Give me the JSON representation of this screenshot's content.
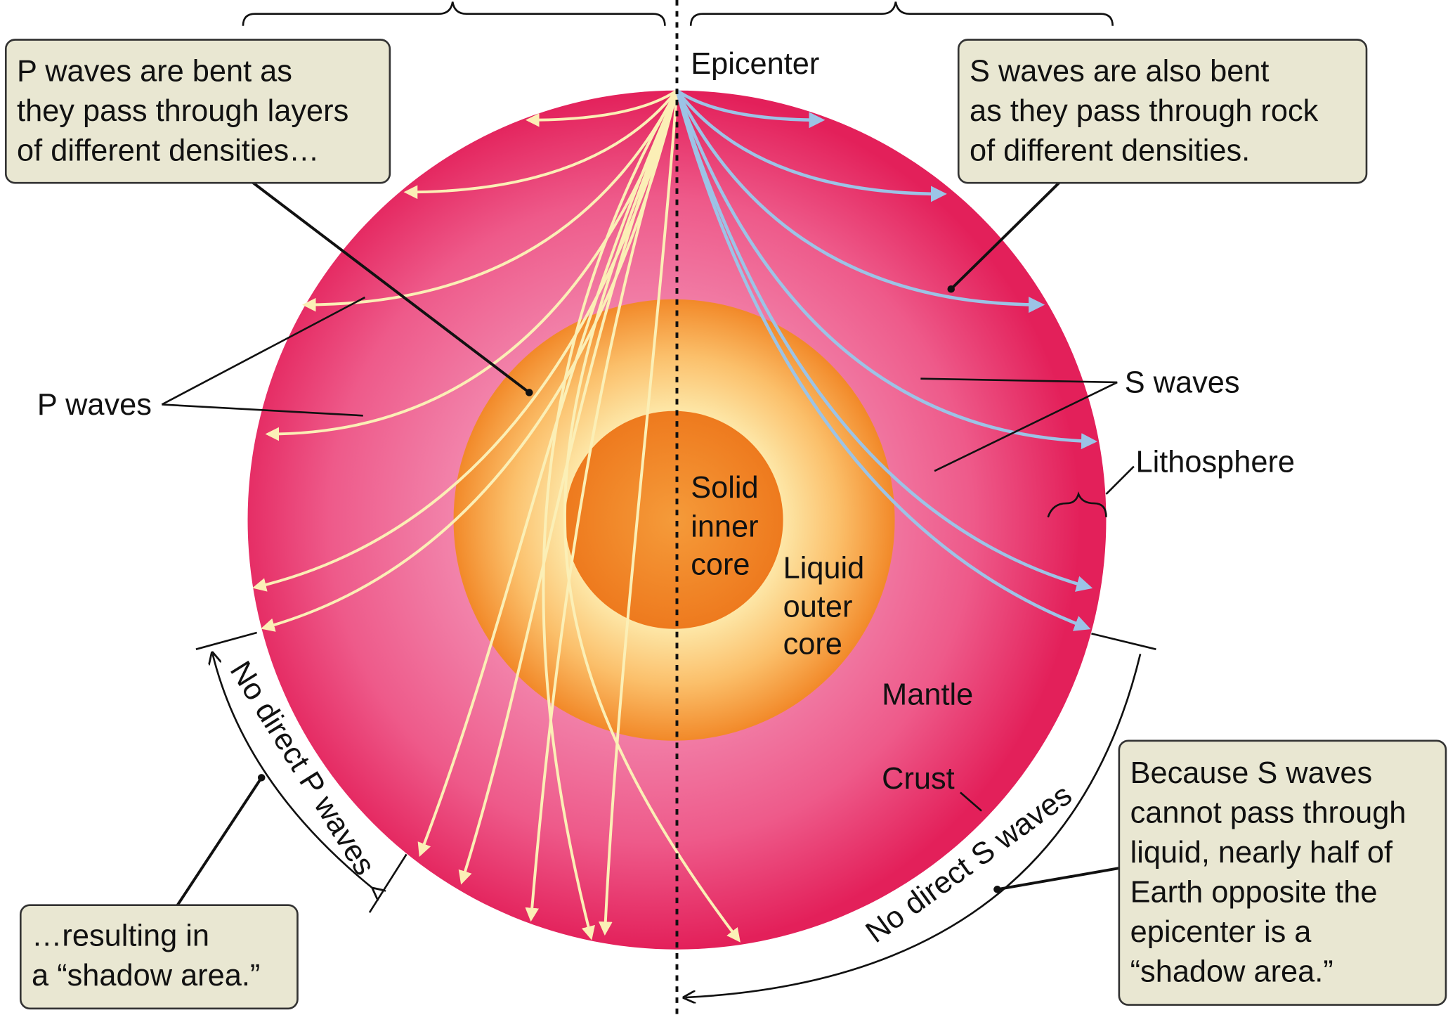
{
  "labels": {
    "epicenter": "Epicenter",
    "p_waves": "P waves",
    "s_waves": "S waves",
    "lithosphere": "Lithosphere",
    "inner_core": [
      "Solid",
      "inner",
      "core"
    ],
    "outer_core": [
      "Liquid",
      "outer",
      "core"
    ],
    "mantle": "Mantle",
    "crust": "Crust",
    "no_p": "No direct P waves",
    "no_s": "No direct S waves"
  },
  "callouts": [
    {
      "lines": [
        "P waves are bent as",
        "they pass through layers",
        "of different densities…"
      ]
    },
    {
      "lines": [
        "S waves are also bent",
        "as they pass through rock",
        "of different densities."
      ]
    },
    {
      "lines": [
        "…resulting in",
        "a “shadow area.”"
      ]
    },
    {
      "lines": [
        "Because S waves",
        "cannot pass through",
        "liquid, nearly half of",
        "Earth opposite the",
        "epicenter is a",
        "“shadow area.”"
      ]
    }
  ]
}
